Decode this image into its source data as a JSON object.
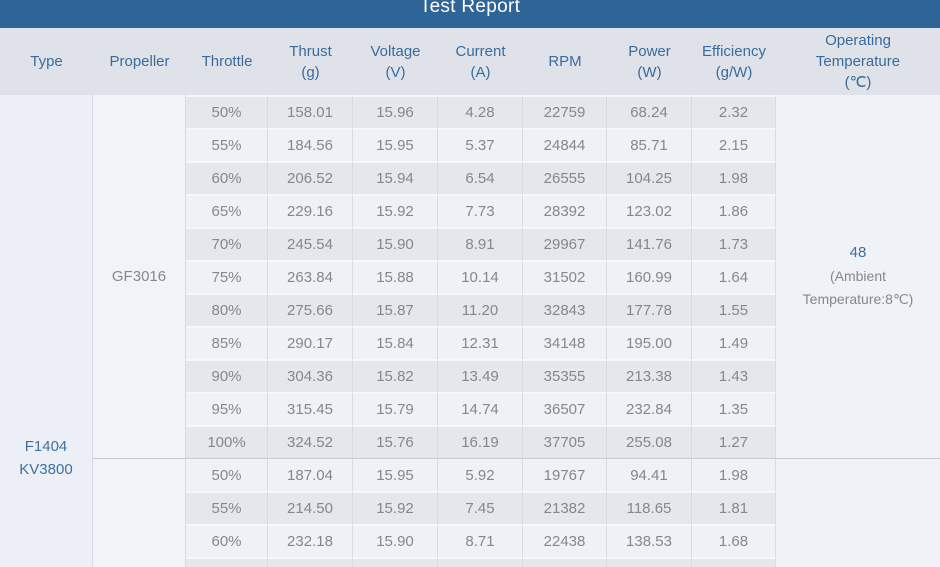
{
  "title": "Test Report",
  "header": {
    "columns": [
      {
        "id": "type",
        "lines": [
          "Type"
        ]
      },
      {
        "id": "propeller",
        "lines": [
          "Propeller"
        ]
      },
      {
        "id": "throttle",
        "lines": [
          "Throttle"
        ]
      },
      {
        "id": "thrust",
        "lines": [
          "Thrust",
          "(g)"
        ]
      },
      {
        "id": "voltage",
        "lines": [
          "Voltage",
          "(V)"
        ]
      },
      {
        "id": "current",
        "lines": [
          "Current",
          "(A)"
        ]
      },
      {
        "id": "rpm",
        "lines": [
          "RPM"
        ]
      },
      {
        "id": "power",
        "lines": [
          "Power",
          "(W)"
        ]
      },
      {
        "id": "efficiency",
        "lines": [
          "Efficiency",
          "(g/W)"
        ]
      },
      {
        "id": "operating-temperature",
        "lines": [
          "Operating",
          "Temperature",
          "(℃)"
        ]
      }
    ]
  },
  "type_cell": {
    "lines": [
      "F1404",
      "KV3800"
    ]
  },
  "groups": [
    {
      "propeller": "GF3016",
      "operating_temperature": {
        "value": "48",
        "note_lines": [
          "(Ambient",
          "Temperature:8℃)"
        ]
      },
      "rows": [
        {
          "throttle": "50%",
          "thrust": "158.01",
          "voltage": "15.96",
          "current": "4.28",
          "rpm": "22759",
          "power": "68.24",
          "efficiency": "2.32"
        },
        {
          "throttle": "55%",
          "thrust": "184.56",
          "voltage": "15.95",
          "current": "5.37",
          "rpm": "24844",
          "power": "85.71",
          "efficiency": "2.15"
        },
        {
          "throttle": "60%",
          "thrust": "206.52",
          "voltage": "15.94",
          "current": "6.54",
          "rpm": "26555",
          "power": "104.25",
          "efficiency": "1.98"
        },
        {
          "throttle": "65%",
          "thrust": "229.16",
          "voltage": "15.92",
          "current": "7.73",
          "rpm": "28392",
          "power": "123.02",
          "efficiency": "1.86"
        },
        {
          "throttle": "70%",
          "thrust": "245.54",
          "voltage": "15.90",
          "current": "8.91",
          "rpm": "29967",
          "power": "141.76",
          "efficiency": "1.73"
        },
        {
          "throttle": "75%",
          "thrust": "263.84",
          "voltage": "15.88",
          "current": "10.14",
          "rpm": "31502",
          "power": "160.99",
          "efficiency": "1.64"
        },
        {
          "throttle": "80%",
          "thrust": "275.66",
          "voltage": "15.87",
          "current": "11.20",
          "rpm": "32843",
          "power": "177.78",
          "efficiency": "1.55"
        },
        {
          "throttle": "85%",
          "thrust": "290.17",
          "voltage": "15.84",
          "current": "12.31",
          "rpm": "34148",
          "power": "195.00",
          "efficiency": "1.49"
        },
        {
          "throttle": "90%",
          "thrust": "304.36",
          "voltage": "15.82",
          "current": "13.49",
          "rpm": "35355",
          "power": "213.38",
          "efficiency": "1.43"
        },
        {
          "throttle": "95%",
          "thrust": "315.45",
          "voltage": "15.79",
          "current": "14.74",
          "rpm": "36507",
          "power": "232.84",
          "efficiency": "1.35"
        },
        {
          "throttle": "100%",
          "thrust": "324.52",
          "voltage": "15.76",
          "current": "16.19",
          "rpm": "37705",
          "power": "255.08",
          "efficiency": "1.27"
        }
      ]
    },
    {
      "propeller": "",
      "operating_temperature": {
        "value": "",
        "note_lines": []
      },
      "rows": [
        {
          "throttle": "50%",
          "thrust": "187.04",
          "voltage": "15.95",
          "current": "5.92",
          "rpm": "19767",
          "power": "94.41",
          "efficiency": "1.98"
        },
        {
          "throttle": "55%",
          "thrust": "214.50",
          "voltage": "15.92",
          "current": "7.45",
          "rpm": "21382",
          "power": "118.65",
          "efficiency": "1.81"
        },
        {
          "throttle": "60%",
          "thrust": "232.18",
          "voltage": "15.90",
          "current": "8.71",
          "rpm": "22438",
          "power": "138.53",
          "efficiency": "1.68"
        }
      ],
      "partial_row_visible": true
    }
  ],
  "colors": {
    "title_bar": "#2f6496",
    "title_text": "#ffffff",
    "header_bg": "#dfe3e9",
    "header_text": "#3a6b9c",
    "stripe_dark": "#e4e7ec",
    "stripe_light": "#eef1f5",
    "type_col_bg": "#ecf0f6",
    "propeller_col_bg": "#f0f3f7",
    "temperature_col_bg": "#eff2f6",
    "column_border": "#d7dbe1",
    "group_divider": "#c3c8d0",
    "data_text": "#85878b",
    "accent_blue_text": "#3f6fa0"
  }
}
